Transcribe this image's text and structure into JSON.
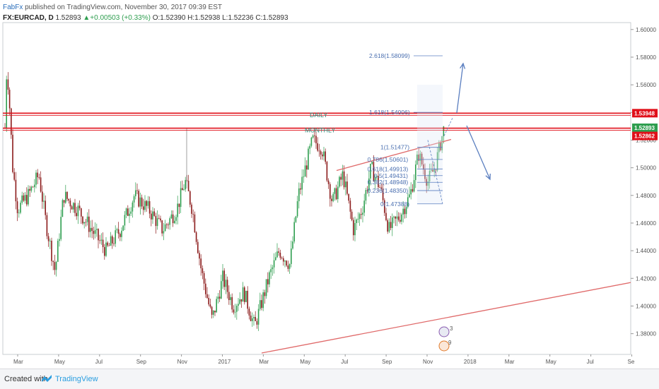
{
  "header": {
    "brand": "FabFx",
    "published": "published on TradingView.com, November 30, 2017 09:39 EST",
    "symbol": "FX:EURCAD, D",
    "last": "1.52893",
    "change": "+0.00503 (+0.33%)",
    "ohlc": "O:1.52390 H:1.52938 L:1.52236 C:1.52893"
  },
  "footer": {
    "created": "Created with",
    "brand": "TradingView"
  },
  "colors": {
    "up": "#2e9e4f",
    "down": "#8b1a1a",
    "resistance": "#e0101a",
    "trend": "#e06a6a",
    "fib": "#5b7fc0"
  },
  "chart_data": {
    "type": "candlestick",
    "ylim": [
      1.365,
      1.605
    ],
    "y_ticks": [
      "1.60000",
      "1.58000",
      "1.56000",
      "1.54000",
      "1.52000",
      "1.50000",
      "1.48000",
      "1.46000",
      "1.44000",
      "1.42000",
      "1.40000",
      "1.38000"
    ],
    "x_ticks": [
      "Mar",
      "May",
      "Jul",
      "Sep",
      "Nov",
      "2017",
      "Mar",
      "May",
      "Jul",
      "Sep",
      "Nov",
      "2018",
      "Mar",
      "May",
      "Jul",
      "Se"
    ],
    "price_tags": [
      {
        "label": "1.53948",
        "value": 1.53948,
        "color": "#e0101a"
      },
      {
        "label": "1.52893",
        "value": 1.52893,
        "color": "#2e9e4f"
      },
      {
        "label": "1.52862",
        "value": 1.52862,
        "color": "#e0101a"
      }
    ],
    "annotations": [
      {
        "text": "DAILY",
        "value": 1.5365
      },
      {
        "text": "MONTHLY",
        "value": 1.5255
      }
    ],
    "fib_levels": [
      {
        "label": "2.618(1.58099)",
        "value": 1.58099
      },
      {
        "label": "1.618(1.54006)",
        "value": 1.54006
      },
      {
        "label": "1(1.51477)",
        "value": 1.51477
      },
      {
        "label": "0.786(1.50601)",
        "value": 1.50601
      },
      {
        "label": "0.618(1.49913)",
        "value": 1.49913
      },
      {
        "label": "0.5(1.49431)",
        "value": 1.49431
      },
      {
        "label": "0.382(1.48948)",
        "value": 1.48948
      },
      {
        "label": "0.236(1.48350)",
        "value": 1.4835
      },
      {
        "label": "0(1.47388)",
        "value": 1.47388
      }
    ],
    "event_badges": [
      "3",
      "9"
    ]
  }
}
